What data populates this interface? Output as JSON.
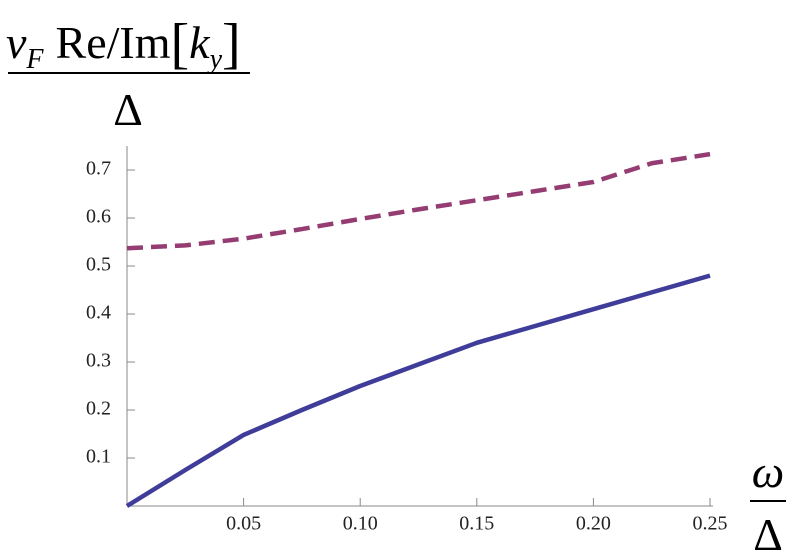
{
  "chart_data": {
    "type": "line",
    "ylabel_numerator": [
      "v",
      "F",
      "Re/Im",
      "[",
      "k",
      "y",
      "]"
    ],
    "ylabel_denominator": "Δ",
    "xlabel_numerator": "ω",
    "xlabel_denominator": "Δ",
    "x": [
      0,
      0.025,
      0.05,
      0.075,
      0.1,
      0.125,
      0.15,
      0.175,
      0.2,
      0.225,
      0.25
    ],
    "series": [
      {
        "color": "#3f3d99",
        "dash": false,
        "values": [
          0,
          0.075,
          0.148,
          0.2,
          0.25,
          0.295,
          0.34,
          0.375,
          0.41,
          0.445,
          0.48
        ]
      },
      {
        "color": "#953d73",
        "dash": true,
        "values": [
          0.537,
          0.543,
          0.557,
          0.577,
          0.598,
          0.618,
          0.637,
          0.656,
          0.675,
          0.714,
          0.733
        ]
      }
    ],
    "xlim": [
      0,
      0.25
    ],
    "ylim": [
      0,
      0.75
    ],
    "xticks": [
      0.05,
      {
        "value": 0.1,
        "label": "0.10"
      },
      0.15,
      {
        "value": 0.2,
        "label": "0.20"
      },
      0.25
    ],
    "yticks": [
      0.1,
      0.2,
      0.3,
      0.4,
      0.5,
      0.6,
      0.7
    ]
  }
}
